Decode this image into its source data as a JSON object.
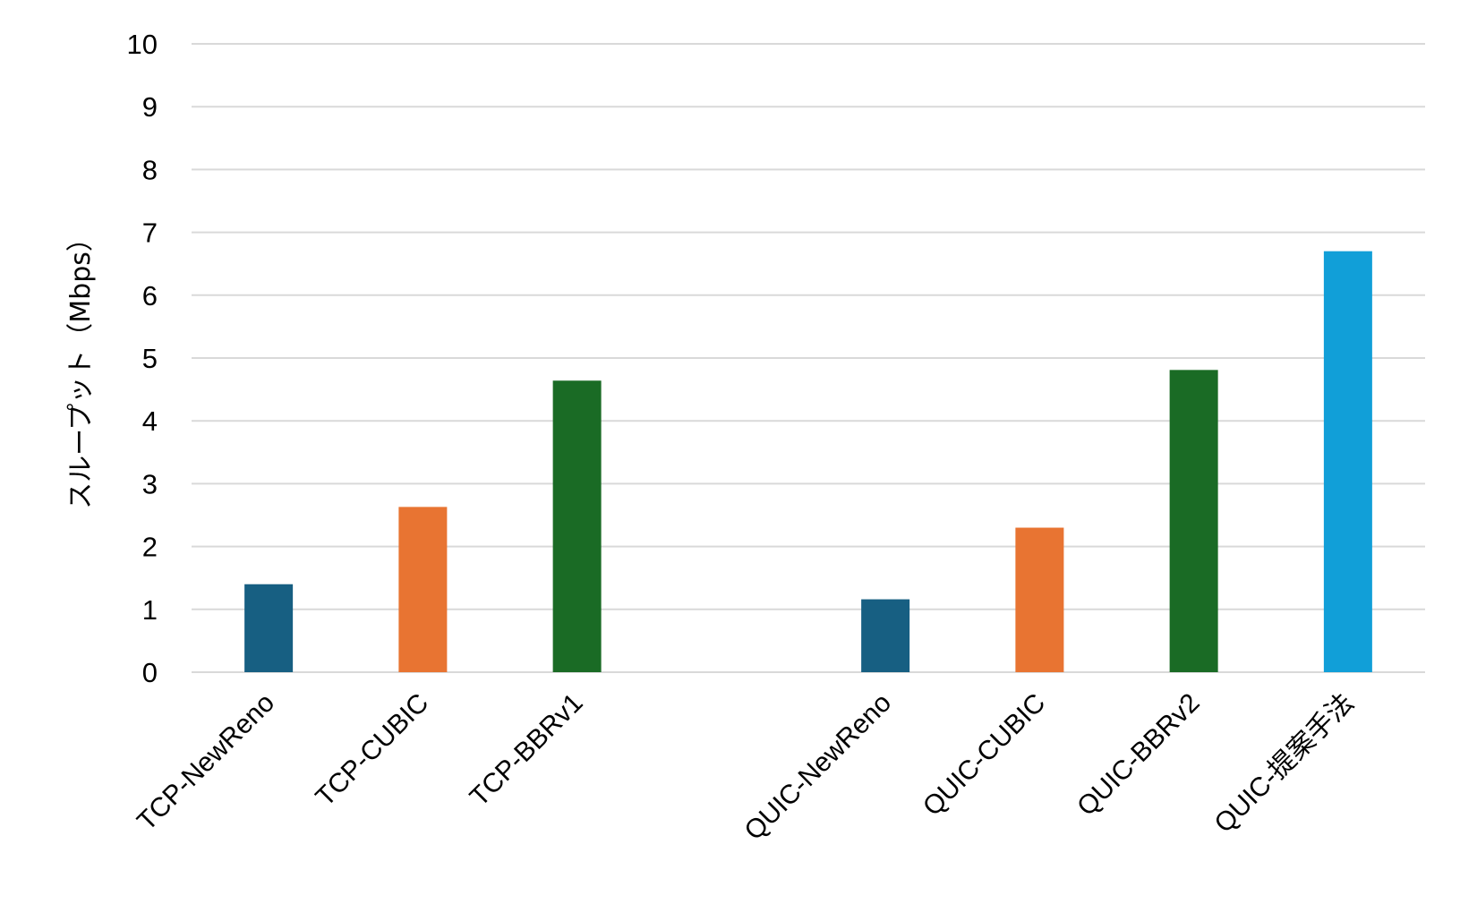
{
  "chart_data": {
    "type": "bar",
    "title": "",
    "xlabel": "",
    "ylabel": "スループット（Mbps）",
    "ylim": [
      0,
      10
    ],
    "yticks": [
      "0",
      "1",
      "2",
      "3",
      "4",
      "5",
      "6",
      "7",
      "8",
      "9",
      "10"
    ],
    "grid": true,
    "legend": "none",
    "categories": [
      "TCP-NewReno",
      "TCP-CUBIC",
      "TCP-BBRv1",
      "",
      "QUIC-NewReno",
      "QUIC-CUBIC",
      "QUIC-BBRv2",
      "QUIC-提案手法"
    ],
    "values": [
      1.4,
      2.63,
      4.64,
      null,
      1.16,
      2.3,
      4.81,
      6.7
    ],
    "colors": [
      "#175f82",
      "#e87432",
      "#1a6b25",
      null,
      "#175f82",
      "#e87432",
      "#1a6b25",
      "#119fd8"
    ]
  }
}
